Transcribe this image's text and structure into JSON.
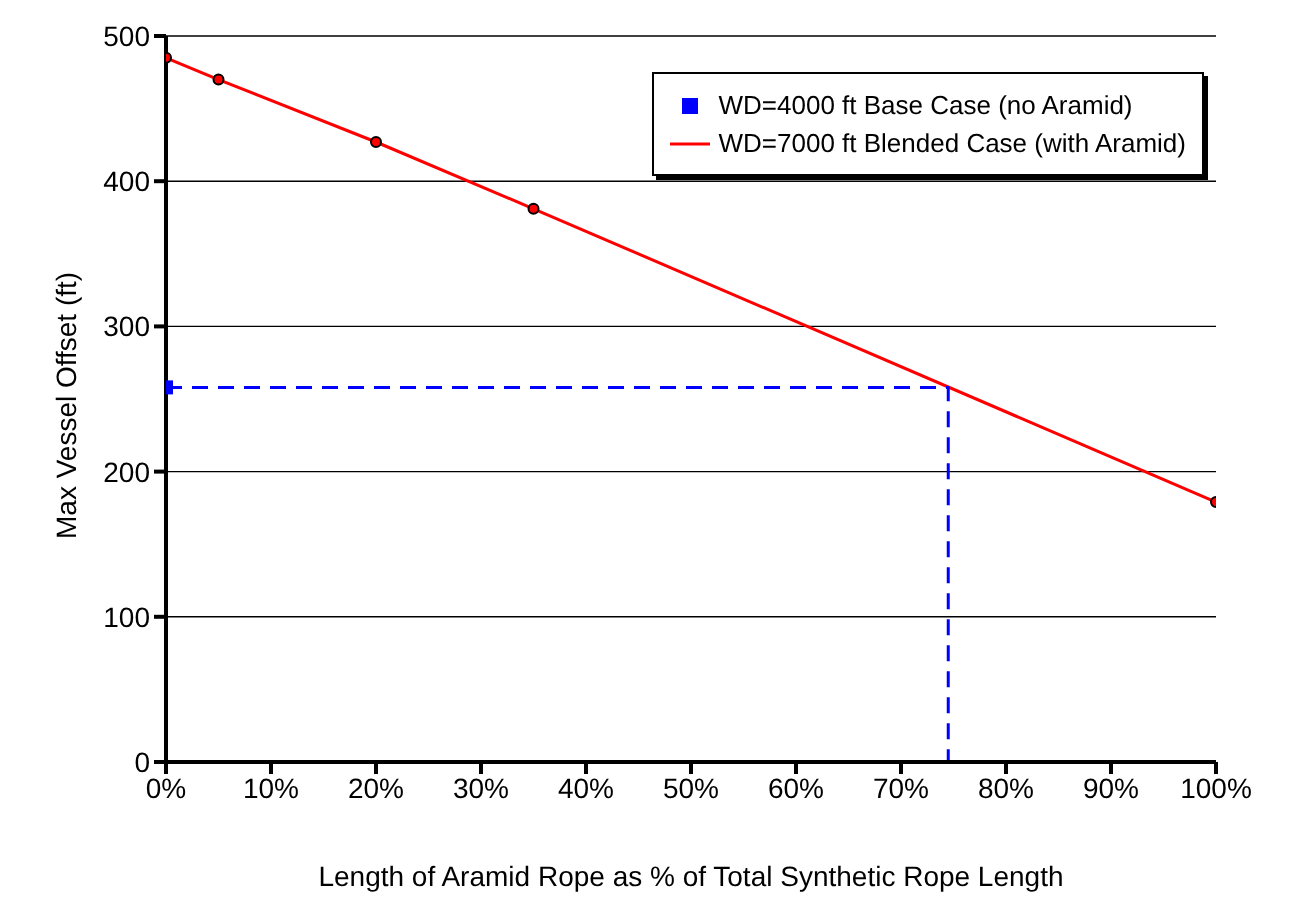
{
  "chart_data": {
    "type": "line",
    "xlabel": "Length of Aramid Rope as % of Total Synthetic Rope Length",
    "ylabel": "Max Vessel Offset (ft)",
    "xlim": [
      0,
      100
    ],
    "xticks": [
      {
        "value": 0,
        "label": "0%"
      },
      {
        "value": 10,
        "label": "10%"
      },
      {
        "value": 20,
        "label": "20%"
      },
      {
        "value": 30,
        "label": "30%"
      },
      {
        "value": 40,
        "label": "40%"
      },
      {
        "value": 50,
        "label": "50%"
      },
      {
        "value": 60,
        "label": "60%"
      },
      {
        "value": 70,
        "label": "70%"
      },
      {
        "value": 80,
        "label": "80%"
      },
      {
        "value": 90,
        "label": "90%"
      },
      {
        "value": 100,
        "label": "100%"
      }
    ],
    "ylim": [
      0,
      500
    ],
    "yticks": [
      0,
      100,
      200,
      300,
      400,
      500
    ],
    "grid": "y",
    "legend": "top right",
    "series": [
      {
        "name": "WD=4000 ft Base Case (no Aramid)",
        "type": "scatter",
        "color": "#0000ff",
        "marker": "square",
        "x": [
          0
        ],
        "values": [
          258
        ]
      },
      {
        "name": "WD=7000 ft Blended Case (with Aramid)",
        "color": "#ff0000",
        "marker": "circle",
        "line_style": "solid",
        "x": [
          0,
          5,
          20,
          35,
          100
        ],
        "values": [
          485,
          470,
          427,
          381,
          179
        ]
      },
      {
        "color": "#0000ff",
        "marker": "none",
        "line_style": "dashed",
        "x": [
          0,
          74.5,
          74.5
        ],
        "values": [
          258,
          258,
          0
        ]
      }
    ]
  }
}
